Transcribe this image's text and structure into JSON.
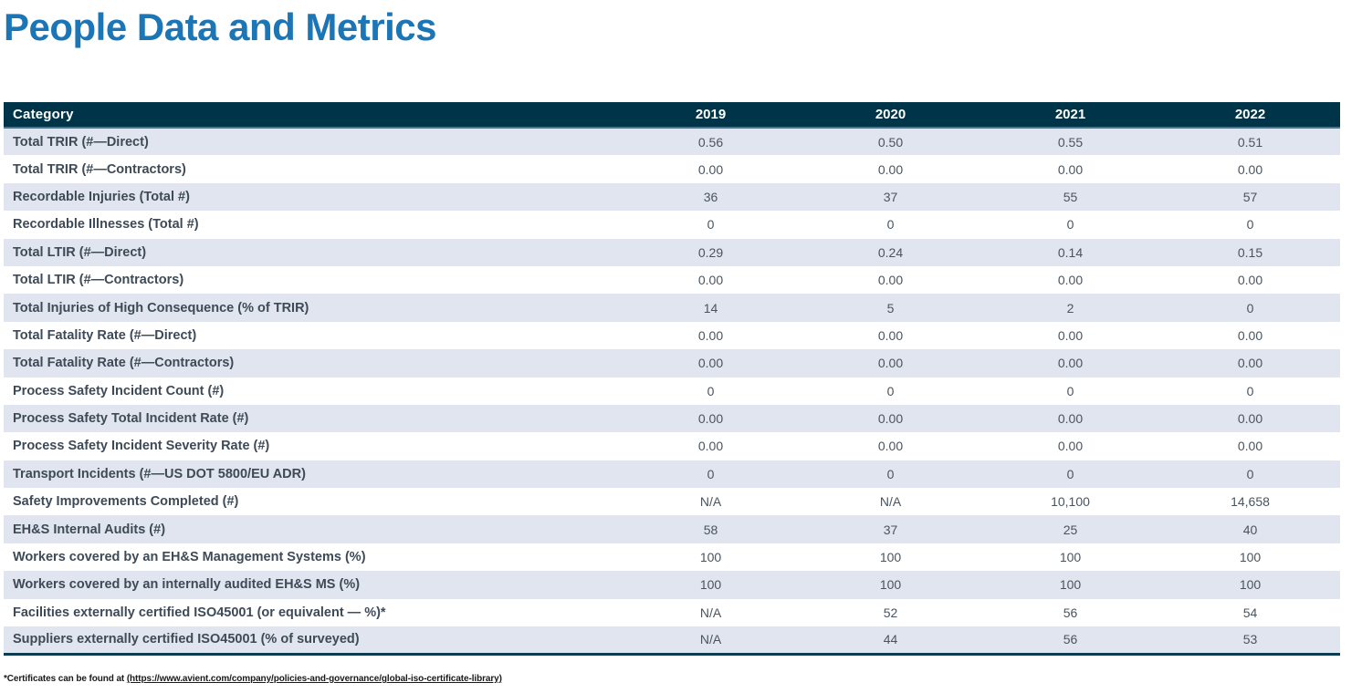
{
  "page": {
    "title": "People Data and Metrics"
  },
  "table": {
    "header": {
      "category": "Category",
      "years": [
        "2019",
        "2020",
        "2021",
        "2022"
      ]
    },
    "rows": [
      {
        "label": "Total TRIR (#—Direct)",
        "values": [
          "0.56",
          "0.50",
          "0.55",
          "0.51"
        ]
      },
      {
        "label": "Total TRIR (#—Contractors)",
        "values": [
          "0.00",
          "0.00",
          "0.00",
          "0.00"
        ]
      },
      {
        "label": "Recordable Injuries (Total #)",
        "values": [
          "36",
          "37",
          "55",
          "57"
        ]
      },
      {
        "label": "Recordable Illnesses (Total #)",
        "values": [
          "0",
          "0",
          "0",
          "0"
        ]
      },
      {
        "label": "Total LTIR (#—Direct)",
        "values": [
          "0.29",
          "0.24",
          "0.14",
          "0.15"
        ]
      },
      {
        "label": "Total LTIR (#—Contractors)",
        "values": [
          "0.00",
          "0.00",
          "0.00",
          "0.00"
        ]
      },
      {
        "label": "Total Injuries of High Consequence (% of TRIR)",
        "values": [
          "14",
          "5",
          "2",
          "0"
        ]
      },
      {
        "label": "Total Fatality Rate (#—Direct)",
        "values": [
          "0.00",
          "0.00",
          "0.00",
          "0.00"
        ]
      },
      {
        "label": "Total Fatality Rate (#—Contractors)",
        "values": [
          "0.00",
          "0.00",
          "0.00",
          "0.00"
        ]
      },
      {
        "label": "Process Safety Incident Count (#)",
        "values": [
          "0",
          "0",
          "0",
          "0"
        ]
      },
      {
        "label": "Process Safety Total Incident Rate (#)",
        "values": [
          "0.00",
          "0.00",
          "0.00",
          "0.00"
        ]
      },
      {
        "label": "Process Safety Incident Severity Rate (#)",
        "values": [
          "0.00",
          "0.00",
          "0.00",
          "0.00"
        ]
      },
      {
        "label": "Transport Incidents (#—US DOT 5800/EU ADR)",
        "values": [
          "0",
          "0",
          "0",
          "0"
        ]
      },
      {
        "label": "Safety Improvements Completed (#)",
        "values": [
          "N/A",
          "N/A",
          "10,100",
          "14,658"
        ]
      },
      {
        "label": "EH&S Internal Audits (#)",
        "values": [
          "58",
          "37",
          "25",
          "40"
        ]
      },
      {
        "label": "Workers covered by an EH&S Management Systems (%)",
        "values": [
          "100",
          "100",
          "100",
          "100"
        ]
      },
      {
        "label": "Workers covered by an internally audited EH&S MS (%)",
        "values": [
          "100",
          "100",
          "100",
          "100"
        ]
      },
      {
        "label": "Facilities externally certified ISO45001 (or equivalent — %)*",
        "values": [
          "N/A",
          "52",
          "56",
          "54"
        ]
      },
      {
        "label": "Suppliers externally certified ISO45001 (% of surveyed)",
        "values": [
          "N/A",
          "44",
          "56",
          "53"
        ]
      }
    ]
  },
  "footnote": {
    "prefix": "*Certificates can be found at ",
    "link_text": "(https://www.avient.com/company/policies-and-governance/global-iso-certificate-library)"
  },
  "colors": {
    "title_blue": "#1C76B5",
    "header_bg": "#003449",
    "row_alt_bg": "#E1E5EF",
    "label_text": "#3E4A56",
    "value_text": "#4A545E"
  }
}
